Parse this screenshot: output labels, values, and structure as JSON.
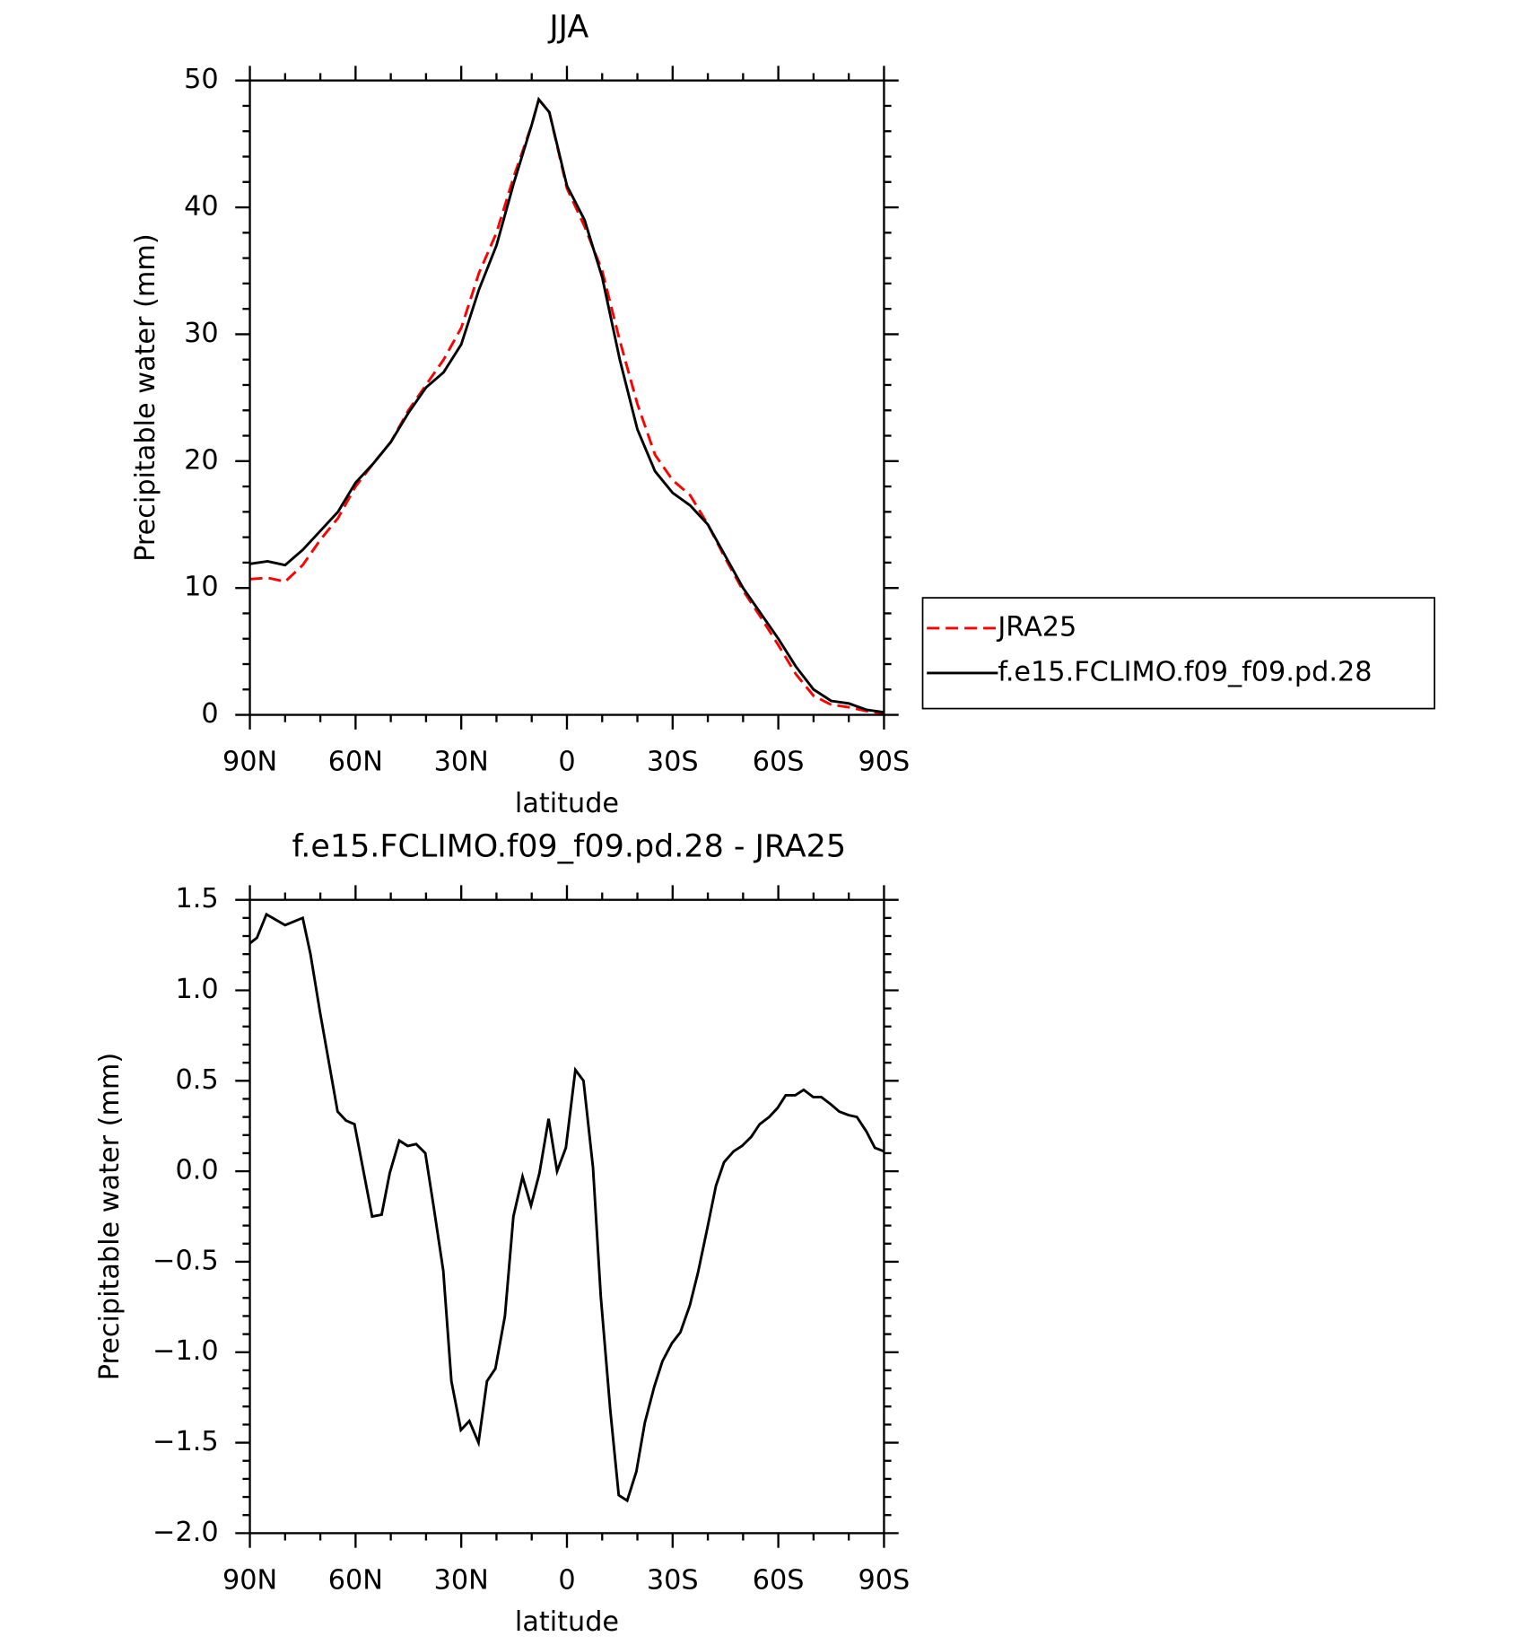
{
  "chart_data": [
    {
      "type": "line",
      "title": "JJA",
      "xlabel": "latitude",
      "ylabel": "Precipitable water (mm)",
      "x": [
        90,
        85,
        80,
        75,
        70,
        65,
        60,
        55,
        50,
        45,
        40,
        35,
        30,
        25,
        20,
        15,
        10,
        8,
        5,
        0,
        -5,
        -10,
        -15,
        -20,
        -25,
        -30,
        -35,
        -40,
        -45,
        -50,
        -55,
        -60,
        -65,
        -70,
        -75,
        -80,
        -85,
        -90
      ],
      "series": [
        {
          "name": "JRA25",
          "color": "#ff0000",
          "dash": true,
          "values": [
            10.7,
            10.8,
            10.5,
            11.8,
            13.8,
            15.5,
            18,
            19.8,
            21.5,
            24,
            26,
            28,
            30.5,
            34.8,
            38,
            42.5,
            46.5,
            48.5,
            47.5,
            41.5,
            38.5,
            35,
            29.5,
            24.5,
            20.5,
            18.5,
            17.3,
            15,
            12.3,
            9.8,
            7.7,
            5.5,
            3.2,
            1.5,
            0.8,
            0.6,
            0.3,
            0.1
          ]
        },
        {
          "name": "f.e15.FCLIMO.f09_f09.pd.28",
          "color": "#000000",
          "dash": false,
          "values": [
            11.9,
            12.1,
            11.8,
            13,
            14.5,
            16,
            18.3,
            19.8,
            21.5,
            23.8,
            25.8,
            27,
            29.2,
            33.5,
            37,
            42,
            46.5,
            48.5,
            47.5,
            41.7,
            39,
            34.5,
            28,
            22.5,
            19.2,
            17.5,
            16.5,
            15,
            12.5,
            10,
            8,
            6,
            3.8,
            2,
            1.1,
            0.9,
            0.4,
            0.2
          ]
        }
      ],
      "xlim": [
        90,
        -90
      ],
      "xticks": [
        {
          "value": 90,
          "label": "90N"
        },
        {
          "value": 60,
          "label": "60N"
        },
        {
          "value": 30,
          "label": "30N"
        },
        0,
        {
          "value": -30,
          "label": "30S"
        },
        {
          "value": -60,
          "label": "60S"
        },
        {
          "value": -90,
          "label": "90S"
        }
      ],
      "ylim": [
        0,
        50
      ],
      "yticks": [
        0,
        10,
        20,
        30,
        40,
        50
      ],
      "legend": "outside-right"
    },
    {
      "type": "line",
      "title": "f.e15.FCLIMO.f09_f09.pd.28 - JRA25",
      "xlabel": "latitude",
      "ylabel": "Precipitable water (mm)",
      "x": [
        90,
        88,
        85.3,
        80,
        75,
        72.8,
        70.1,
        65.1,
        62.7,
        60.3,
        55.3,
        52.6,
        50.3,
        47.6,
        45.2,
        42.8,
        40.2,
        37.8,
        35.1,
        32.8,
        30.1,
        27.7,
        25.1,
        22.7,
        20.3,
        17.6,
        15.2,
        12.6,
        10.2,
        7.8,
        5.2,
        2.8,
        0.3,
        -2.4,
        -4.7,
        -7.4,
        -9.6,
        -12.3,
        -14.7,
        -17.1,
        -19.7,
        -22.1,
        -24.8,
        -27.1,
        -29.8,
        -32.2,
        -34.9,
        -37.2,
        -39.9,
        -42.3,
        -44.6,
        -47.3,
        -49.7,
        -52.3,
        -54.7,
        -57.4,
        -59.8,
        -62.1,
        -64.8,
        -67.2,
        -69.9,
        -72.2,
        -74.9,
        -77.3,
        -80,
        -82.3,
        -85,
        -87.4,
        -90
      ],
      "series": [
        {
          "color": "#000000",
          "dash": false,
          "values": [
            1.26,
            1.29,
            1.42,
            1.36,
            1.4,
            1.2,
            0.88,
            0.33,
            0.28,
            0.26,
            -0.25,
            -0.24,
            -0.01,
            0.17,
            0.14,
            0.15,
            0.1,
            -0.2,
            -0.55,
            -1.16,
            -1.43,
            -1.38,
            -1.5,
            -1.16,
            -1.09,
            -0.8,
            -0.25,
            -0.03,
            -0.19,
            -0.01,
            0.29,
            0,
            0.13,
            0.56,
            0.5,
            0.02,
            -0.69,
            -1.32,
            -1.79,
            -1.82,
            -1.66,
            -1.39,
            -1.19,
            -1.05,
            -0.95,
            -0.89,
            -0.74,
            -0.56,
            -0.31,
            -0.08,
            0.05,
            0.11,
            0.14,
            0.19,
            0.26,
            0.3,
            0.35,
            0.42,
            0.42,
            0.45,
            0.41,
            0.41,
            0.37,
            0.33,
            0.31,
            0.3,
            0.22,
            0.13,
            0.11
          ]
        }
      ],
      "xlim": [
        90,
        -90
      ],
      "xticks": [
        {
          "value": 90,
          "label": "90N"
        },
        {
          "value": 60,
          "label": "60N"
        },
        {
          "value": 30,
          "label": "30N"
        },
        0,
        {
          "value": -30,
          "label": "30S"
        },
        {
          "value": -60,
          "label": "60S"
        },
        {
          "value": -90,
          "label": "90S"
        }
      ],
      "ylim": [
        -2,
        1.5
      ],
      "yticks": [
        {
          "value": -2,
          "label": "−2.0"
        },
        {
          "value": -1.5,
          "label": "−1.5"
        },
        {
          "value": -1,
          "label": "−1.0"
        },
        {
          "value": -0.5,
          "label": "−0.5"
        },
        {
          "value": 0,
          "label": "0.0"
        },
        0.5,
        {
          "value": 1,
          "label": "1.0"
        },
        1.5
      ]
    }
  ]
}
